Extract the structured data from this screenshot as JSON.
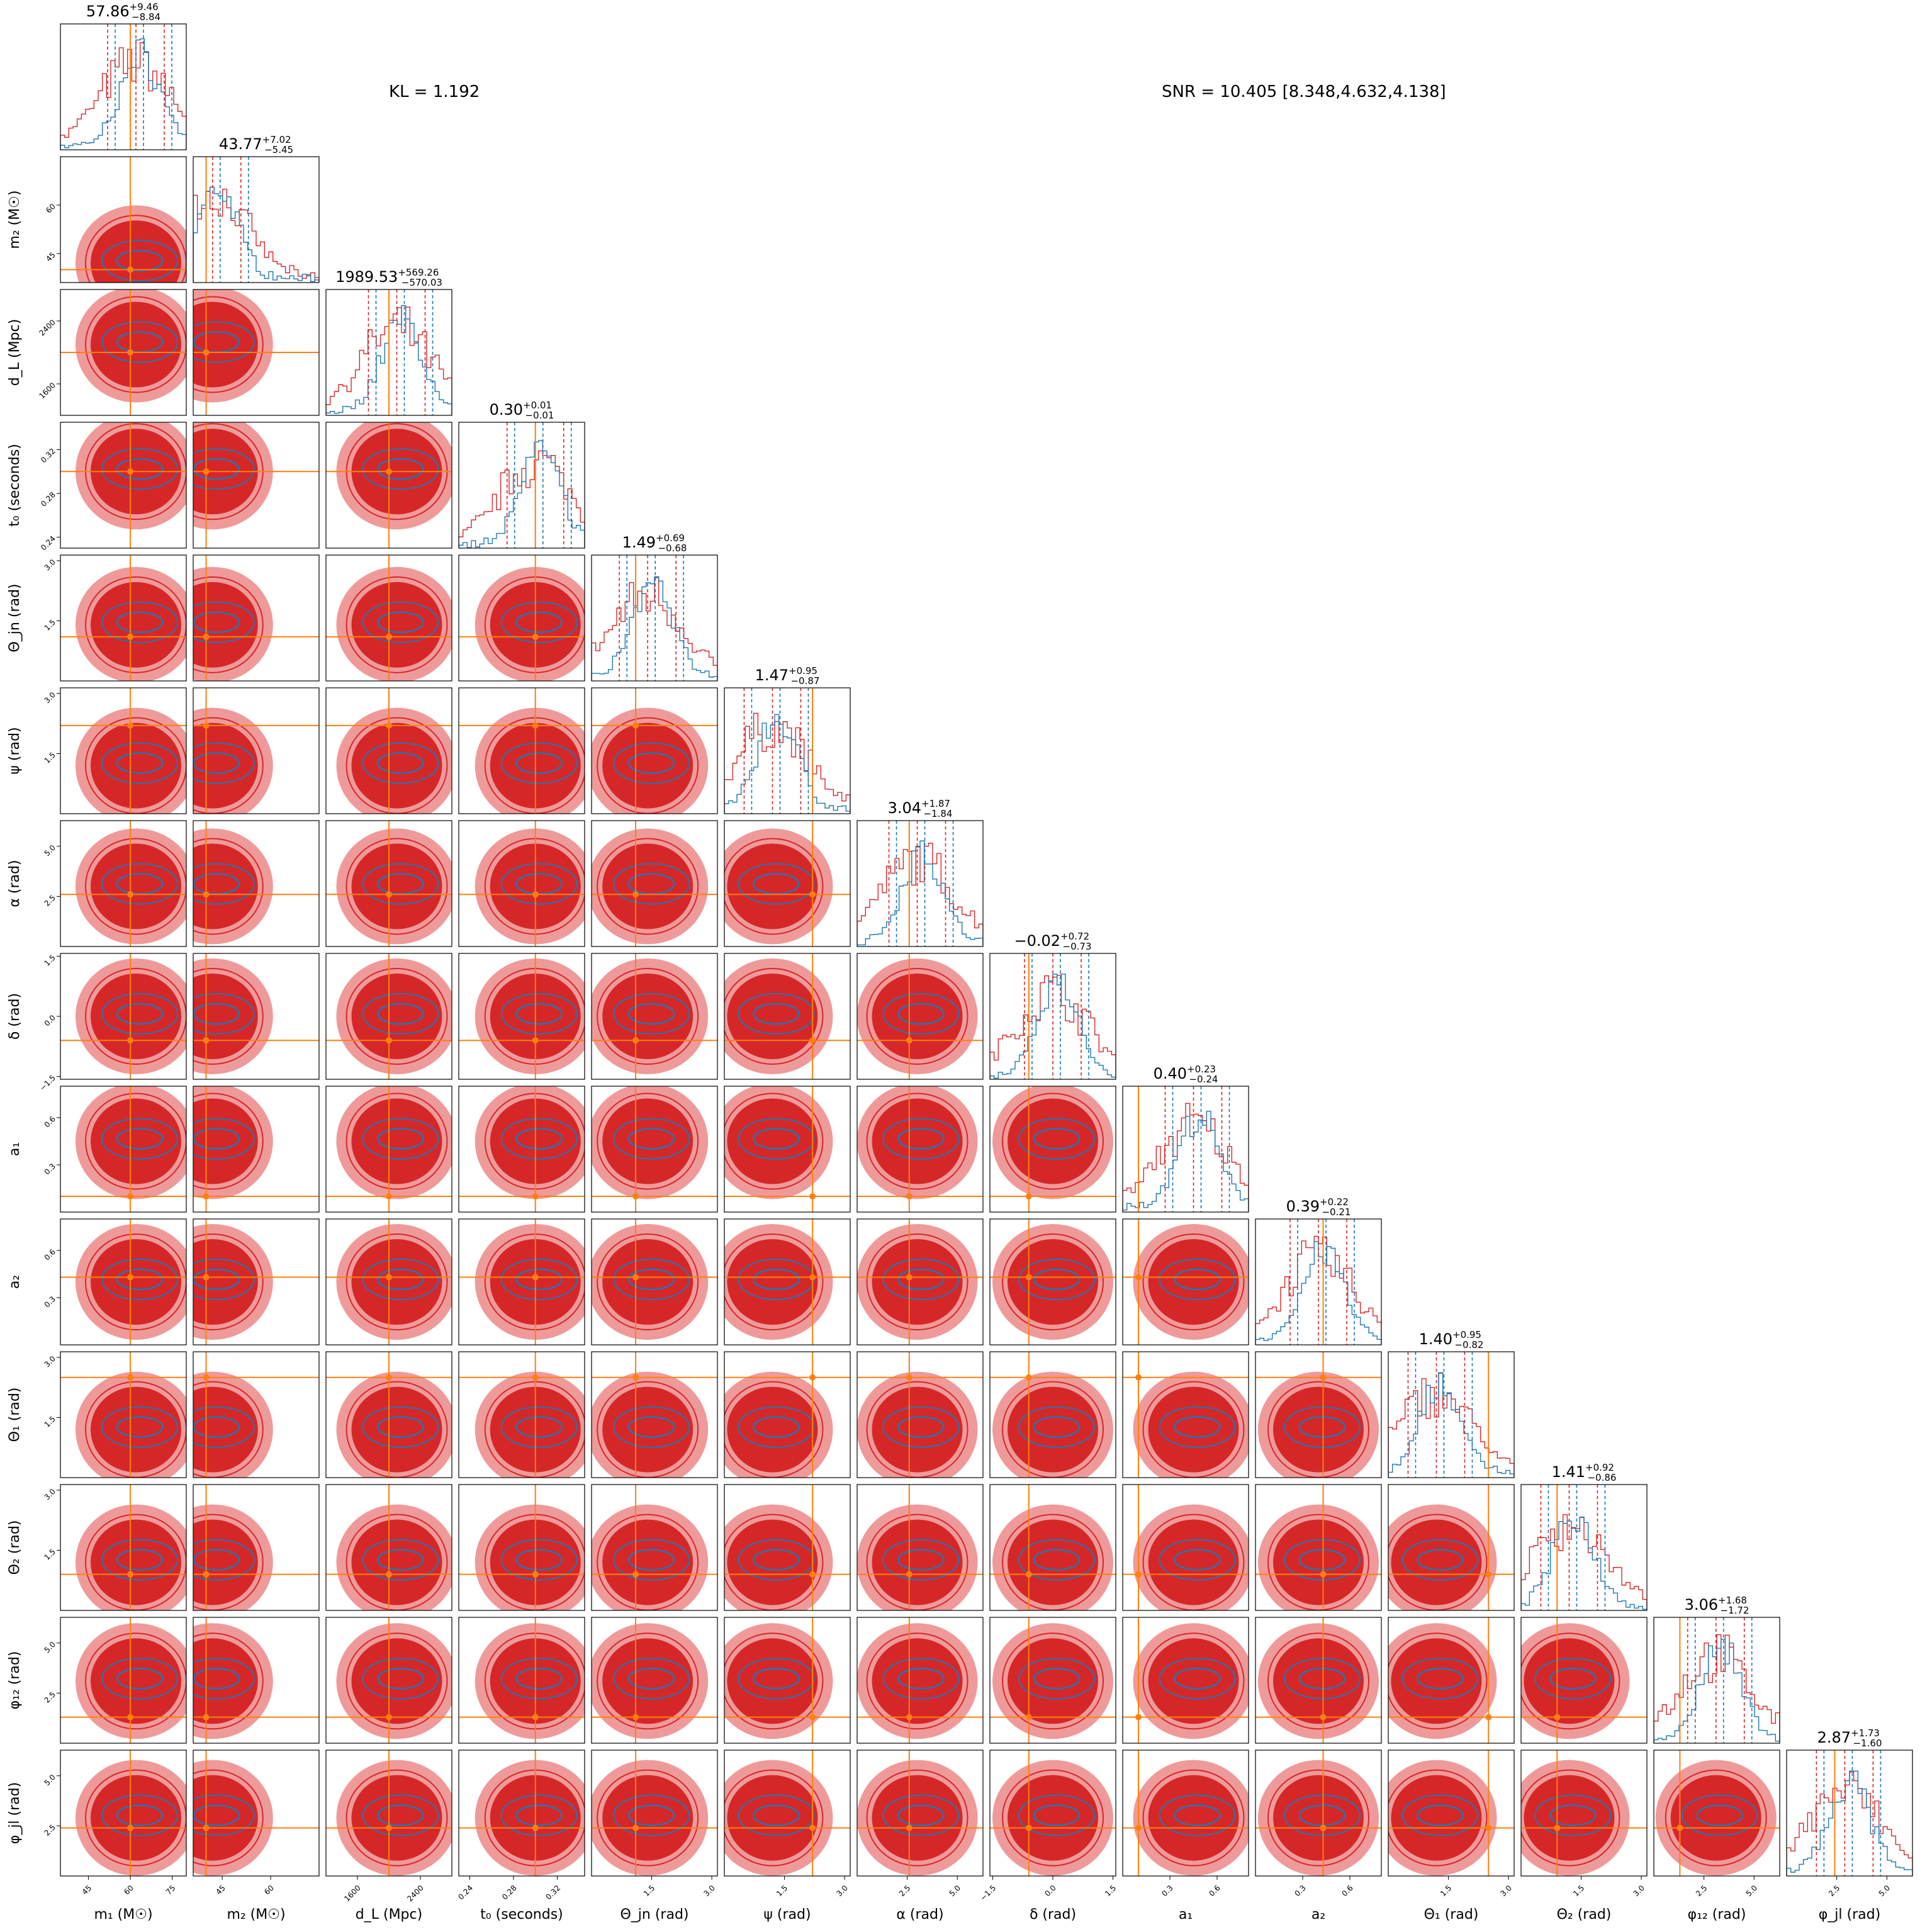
{
  "chart_data": {
    "type": "corner",
    "annotations": {
      "kl": "KL = 1.192",
      "snr": "SNR = 10.405 [8.348,4.632,4.138]"
    },
    "colors": {
      "posterior_a": "#d62728",
      "posterior_a_light": "#ef9a9a",
      "posterior_b": "#1f77b4",
      "truth": "#ff7f0e",
      "frame": "#000000"
    },
    "parameters": [
      {
        "label": "m₁ (M☉)",
        "median": "57.86",
        "plus": "+9.46",
        "minus": "−8.84",
        "range": [
          35,
          80
        ],
        "ticks": [
          {
            "v": 45,
            "t": "45"
          },
          {
            "v": 60,
            "t": "60"
          },
          {
            "v": 75,
            "t": "75"
          }
        ],
        "truth": 60,
        "peak": 62
      },
      {
        "label": "m₂ (M☉)",
        "median": "43.77",
        "plus": "+7.02",
        "minus": "−5.45",
        "range": [
          36,
          75
        ],
        "ticks": [
          {
            "v": 45,
            "t": "45"
          },
          {
            "v": 60,
            "t": "60"
          }
        ],
        "truth": 40,
        "peak": 42
      },
      {
        "label": "d_L (Mpc)",
        "median": "1989.53",
        "plus": "+569.26",
        "minus": "−570.03",
        "range": [
          1200,
          2800
        ],
        "ticks": [
          {
            "v": 1600,
            "t": "1600"
          },
          {
            "v": 2400,
            "t": "2400"
          }
        ],
        "truth": 2000,
        "peak": 2100
      },
      {
        "label": "t₀ (seconds)",
        "median": "0.30",
        "plus": "+0.01",
        "minus": "−0.01",
        "range": [
          0.23,
          0.345
        ],
        "ticks": [
          {
            "v": 0.24,
            "t": "0.24"
          },
          {
            "v": 0.28,
            "t": "0.28"
          },
          {
            "v": 0.32,
            "t": "0.32"
          }
        ],
        "truth": 0.3,
        "peak": 0.3
      },
      {
        "label": "Θ_jn (rad)",
        "median": "1.49",
        "plus": "+0.69",
        "minus": "−0.68",
        "range": [
          0,
          3.14
        ],
        "ticks": [
          {
            "v": 1.5,
            "t": "1.5"
          },
          {
            "v": 3.0,
            "t": "3.0"
          }
        ],
        "truth": 1.1,
        "peak": 1.4
      },
      {
        "label": "ψ (rad)",
        "median": "1.47",
        "plus": "+0.95",
        "minus": "−0.87",
        "range": [
          0,
          3.14
        ],
        "ticks": [
          {
            "v": 1.5,
            "t": "1.5"
          },
          {
            "v": 3.0,
            "t": "3.0"
          }
        ],
        "truth": 2.2,
        "peak": 1.2
      },
      {
        "label": "α (rad)",
        "median": "3.04",
        "plus": "+1.87",
        "minus": "−1.84",
        "range": [
          0,
          6.28
        ],
        "ticks": [
          {
            "v": 2.5,
            "t": "2.5"
          },
          {
            "v": 5.0,
            "t": "5.0"
          }
        ],
        "truth": 2.6,
        "peak": 3.0
      },
      {
        "label": "δ (rad)",
        "median": "−0.02",
        "plus": "+0.72",
        "minus": "−0.73",
        "range": [
          -1.57,
          1.57
        ],
        "ticks": [
          {
            "v": -1.5,
            "t": "−1.5"
          },
          {
            "v": 0.0,
            "t": "0.0"
          },
          {
            "v": 1.5,
            "t": "1.5"
          }
        ],
        "truth": -0.6,
        "peak": 0.0
      },
      {
        "label": "a₁",
        "median": "0.40",
        "plus": "+0.23",
        "minus": "−0.24",
        "range": [
          0,
          0.8
        ],
        "ticks": [
          {
            "v": 0.3,
            "t": "0.3"
          },
          {
            "v": 0.6,
            "t": "0.6"
          }
        ],
        "truth": 0.1,
        "peak": 0.45
      },
      {
        "label": "a₂",
        "median": "0.39",
        "plus": "+0.22",
        "minus": "−0.21",
        "range": [
          0,
          0.8
        ],
        "ticks": [
          {
            "v": 0.3,
            "t": "0.3"
          },
          {
            "v": 0.6,
            "t": "0.6"
          }
        ],
        "truth": 0.43,
        "peak": 0.4
      },
      {
        "label": "Θ₁ (rad)",
        "median": "1.40",
        "plus": "+0.95",
        "minus": "−0.82",
        "range": [
          0,
          3.14
        ],
        "ticks": [
          {
            "v": 1.5,
            "t": "1.5"
          },
          {
            "v": 3.0,
            "t": "3.0"
          }
        ],
        "truth": 2.5,
        "peak": 1.2
      },
      {
        "label": "Θ₂ (rad)",
        "median": "1.41",
        "plus": "+0.92",
        "minus": "−0.86",
        "range": [
          0,
          3.14
        ],
        "ticks": [
          {
            "v": 1.5,
            "t": "1.5"
          },
          {
            "v": 3.0,
            "t": "3.0"
          }
        ],
        "truth": 0.9,
        "peak": 1.2
      },
      {
        "label": "φ₁₂ (rad)",
        "median": "3.06",
        "plus": "+1.68",
        "minus": "−1.72",
        "range": [
          0,
          6.28
        ],
        "ticks": [
          {
            "v": 2.5,
            "t": "2.5"
          },
          {
            "v": 5.0,
            "t": "5.0"
          }
        ],
        "truth": 1.3,
        "peak": 3.1
      },
      {
        "label": "φ_jl (rad)",
        "median": "2.87",
        "plus": "+1.73",
        "minus": "−1.60",
        "range": [
          0,
          6.28
        ],
        "ticks": [
          {
            "v": 2.5,
            "t": "2.5"
          },
          {
            "v": 5.0,
            "t": "5.0"
          }
        ],
        "truth": 2.4,
        "peak": 2.9
      }
    ]
  }
}
